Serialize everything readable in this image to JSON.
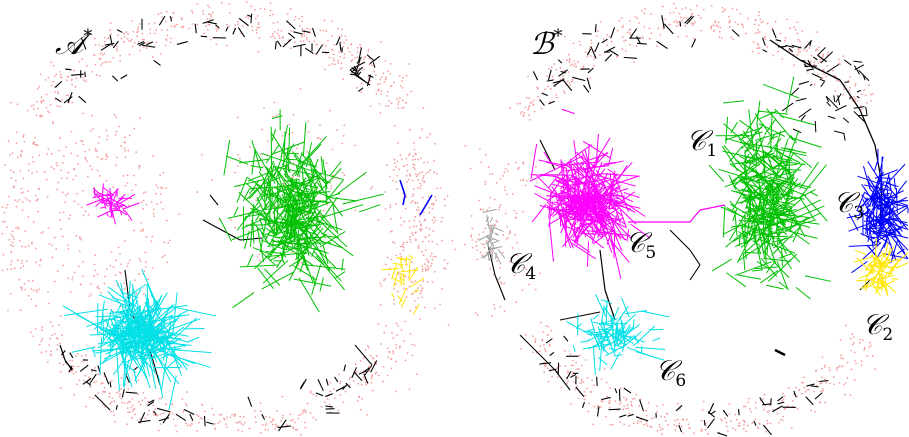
{
  "panels": [
    {
      "id": "A",
      "label": "𝒜",
      "label_sup": "*",
      "clusters": [
        {
          "color": "#00c000",
          "name": ""
        },
        {
          "color": "#00e0e6",
          "name": ""
        },
        {
          "color": "#ff00ff",
          "name": ""
        },
        {
          "color": "#0000ff",
          "name": ""
        },
        {
          "color": "#ffe600",
          "name": ""
        }
      ]
    },
    {
      "id": "B",
      "label": "ℬ",
      "label_sup": "*",
      "clusters": [
        {
          "color": "#00c000",
          "name": "𝒞",
          "sub": "1"
        },
        {
          "color": "#ffe600",
          "name": "𝒞",
          "sub": "2"
        },
        {
          "color": "#0000ff",
          "name": "𝒞",
          "sub": "3"
        },
        {
          "color": "#a0a0a0",
          "name": "𝒞",
          "sub": "4"
        },
        {
          "color": "#ff00ff",
          "name": "𝒞",
          "sub": "5"
        },
        {
          "color": "#00e0e6",
          "name": "𝒞",
          "sub": "6"
        }
      ]
    }
  ],
  "colors": {
    "background": "#ffffff",
    "node_dots": "#f4a0a0",
    "edges": "#000000",
    "green": "#00c000",
    "cyan": "#00e0e6",
    "magenta": "#ff00ff",
    "blue": "#0000ff",
    "yellow": "#ffe600",
    "gray": "#a0a0a0"
  }
}
